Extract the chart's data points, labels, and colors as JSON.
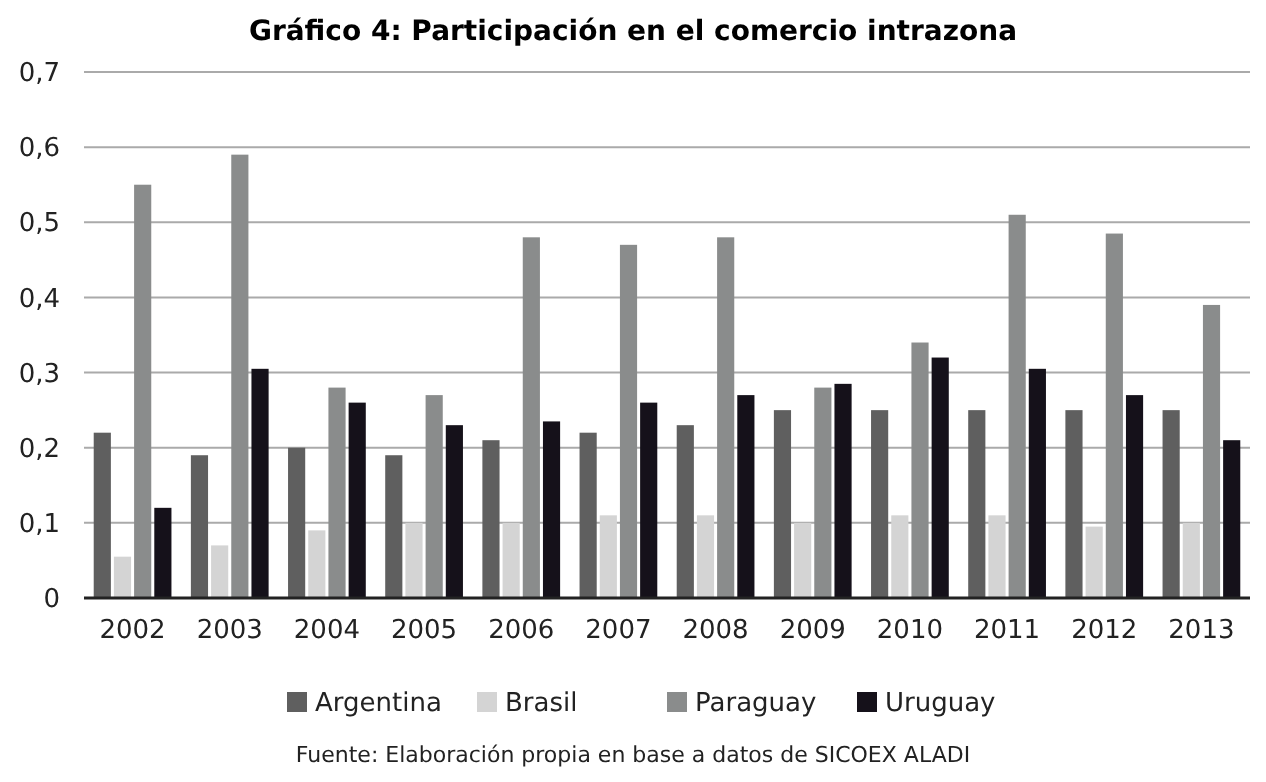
{
  "chart_data": {
    "type": "bar",
    "title": "Gráfico 4: Participación en el comercio intrazona",
    "categories": [
      "2002",
      "2003",
      "2004",
      "2005",
      "2006",
      "2007",
      "2008",
      "2009",
      "2010",
      "2011",
      "2012",
      "2013"
    ],
    "series": [
      {
        "name": "Argentina",
        "color": "#5f5f5f",
        "values": [
          0.22,
          0.19,
          0.2,
          0.19,
          0.21,
          0.22,
          0.23,
          0.25,
          0.25,
          0.25,
          0.25,
          0.25
        ]
      },
      {
        "name": "Brasil",
        "color": "#d4d4d4",
        "values": [
          0.055,
          0.07,
          0.09,
          0.1,
          0.1,
          0.11,
          0.11,
          0.1,
          0.11,
          0.11,
          0.095,
          0.1
        ]
      },
      {
        "name": "Paraguay",
        "color": "#8a8c8c",
        "values": [
          0.55,
          0.59,
          0.28,
          0.27,
          0.48,
          0.47,
          0.48,
          0.28,
          0.34,
          0.51,
          0.485,
          0.39
        ]
      },
      {
        "name": "Uruguay",
        "color": "#15111a",
        "values": [
          0.12,
          0.305,
          0.26,
          0.23,
          0.235,
          0.26,
          0.27,
          0.285,
          0.32,
          0.305,
          0.27,
          0.21
        ]
      }
    ],
    "ylim": [
      0,
      0.7
    ],
    "yticks": [
      {
        "value": 0,
        "label": "0"
      },
      {
        "value": 0.1,
        "label": "0,1"
      },
      {
        "value": 0.2,
        "label": "0,2"
      },
      {
        "value": 0.3,
        "label": "0,3"
      },
      {
        "value": 0.4,
        "label": "0,4"
      },
      {
        "value": 0.5,
        "label": "0,5"
      },
      {
        "value": 0.6,
        "label": "0,6"
      },
      {
        "value": 0.7,
        "label": "0,7"
      }
    ],
    "grid": "y",
    "legend": "bottom",
    "annotations": [
      "Fuente: Elaboración propia en base a datos de SICOEX ALADI"
    ]
  }
}
